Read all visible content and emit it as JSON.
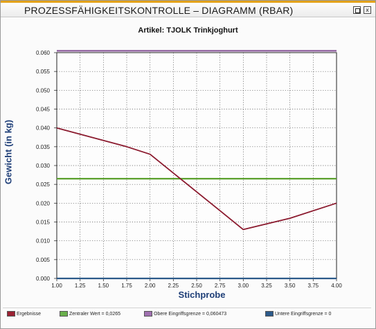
{
  "window": {
    "title": "PROZESSFÄHIGKEITSKONTROLLE  – DIAGRAMM (RBAR)",
    "restore_icon": "restore-icon",
    "close_icon": "close-icon",
    "close_glyph": "x"
  },
  "chart_data": {
    "type": "line",
    "title": "Artikel:  TJOLK Trinkjoghurt",
    "xlabel": "Stichprobe",
    "ylabel": "Gewicht (in kg)",
    "xlim": [
      1.0,
      4.0
    ],
    "ylim": [
      0.0,
      0.06
    ],
    "x_ticks": [
      "1.00",
      "1.25",
      "1.50",
      "1.75",
      "2.00",
      "2.25",
      "2.50",
      "2.75",
      "3.00",
      "3.25",
      "3.50",
      "3.75",
      "4.00"
    ],
    "y_ticks": [
      "0.000",
      "0.005",
      "0.010",
      "0.015",
      "0.020",
      "0.025",
      "0.030",
      "0.035",
      "0.040",
      "0.045",
      "0.050",
      "0.055",
      "0.060"
    ],
    "grid": true,
    "legend_position": "bottom",
    "series": [
      {
        "name": "Ergebnisse",
        "color": "#8b1a2e",
        "x": [
          1.0,
          1.75,
          2.0,
          2.75,
          3.0,
          3.5,
          4.0
        ],
        "y": [
          0.04,
          0.035,
          0.033,
          0.018,
          0.013,
          0.016,
          0.02
        ]
      },
      {
        "name": "Zentraler Wert = 0,0265",
        "color": "#5aa02c",
        "x": [
          1.0,
          4.0
        ],
        "y": [
          0.0265,
          0.0265
        ]
      },
      {
        "name": "Obere Eingriffsgrenze = 0,060473",
        "color": "#8a5a9a",
        "x": [
          1.0,
          4.0
        ],
        "y": [
          0.060473,
          0.060473
        ]
      },
      {
        "name": "Untere Eingriffsgrenze = 0",
        "color": "#2c5a8a",
        "x": [
          1.0,
          4.0
        ],
        "y": [
          0.0,
          0.0
        ]
      }
    ]
  },
  "legend": {
    "items": [
      {
        "label": "Ergebnisse",
        "color": "#9b2233"
      },
      {
        "label": "Zentraler Wert = 0,0265",
        "color": "#6ab04c"
      },
      {
        "label": "Obere Eingriffsgrenze = 0,060473",
        "color": "#a070b0"
      },
      {
        "label": "Untere Eingriffsgrenze = 0",
        "color": "#2c5a8a"
      }
    ]
  }
}
